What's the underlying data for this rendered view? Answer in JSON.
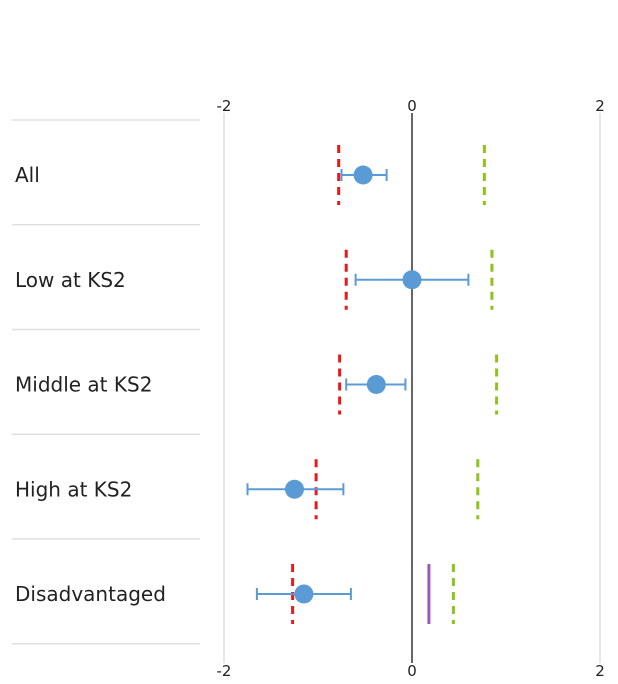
{
  "chart_data": {
    "type": "forest",
    "xlim": [
      -2,
      2
    ],
    "x_ticks": [
      -2,
      0,
      2
    ],
    "x_tick_labels": [
      "-2",
      "0",
      "2"
    ],
    "grid": "vertical lines at ticks",
    "categories": [
      "All",
      "Low at KS2",
      "Middle at KS2",
      "High at KS2",
      "Disadvantaged"
    ],
    "estimates": [
      {
        "category": "All",
        "value": -0.52,
        "ci_low": -0.75,
        "ci_high": -0.27
      },
      {
        "category": "Low at KS2",
        "value": 0.0,
        "ci_low": -0.6,
        "ci_high": 0.6
      },
      {
        "category": "Middle at KS2",
        "value": -0.38,
        "ci_low": -0.7,
        "ci_high": -0.07
      },
      {
        "category": "High at KS2",
        "value": -1.25,
        "ci_low": -1.75,
        "ci_high": -0.73
      },
      {
        "category": "Disadvantaged",
        "value": -1.15,
        "ci_low": -1.65,
        "ci_high": -0.65
      }
    ],
    "reference_markers": [
      {
        "style": "red-dashed",
        "values": [
          -0.78,
          -0.7,
          -0.77,
          -1.02,
          -1.27
        ]
      },
      {
        "style": "green-dashed",
        "values": [
          0.77,
          0.85,
          0.9,
          0.7,
          0.44
        ]
      },
      {
        "style": "purple-solid",
        "values": [
          null,
          null,
          null,
          null,
          0.18
        ]
      }
    ],
    "colors": {
      "point": "#5b9bd5",
      "error_bar": "#5b9bd5",
      "red_marker": "#e8191b",
      "green_marker": "#8dc21f",
      "purple_marker": "#9b59b6",
      "zero_line": "#000000",
      "grid": "#d0d0d0",
      "separator": "#e0e0e0"
    }
  }
}
